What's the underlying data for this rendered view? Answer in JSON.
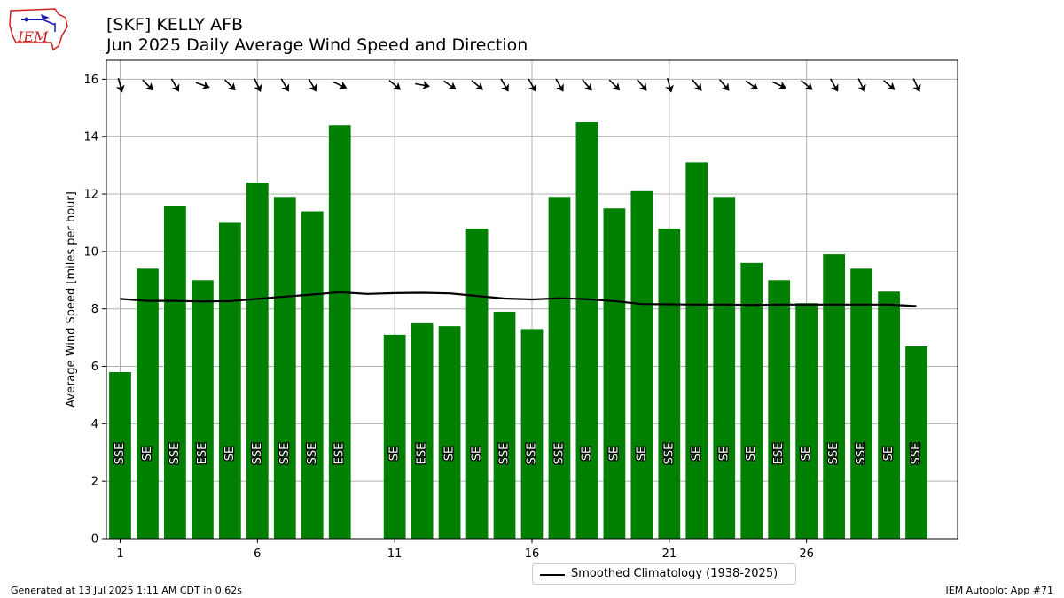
{
  "header": {
    "logo_text": "IEM",
    "title": "[SKF] KELLY AFB",
    "subtitle": "Jun 2025 Daily Average Wind Speed and Direction"
  },
  "footer": {
    "generated": "Generated at 13 Jul 2025 1:11 AM CDT in 0.62s",
    "app": "IEM Autoplot App #71"
  },
  "legend": {
    "climatology_label": "Smoothed Climatology (1938-2025)"
  },
  "colors": {
    "bar": "#008000",
    "climatology": "#000000",
    "grid": "#b0b0b0"
  },
  "chart_data": {
    "type": "bar",
    "title": "[SKF] KELLY AFB",
    "subtitle": "Jun 2025 Daily Average Wind Speed and Direction",
    "ylabel": "Average Wind Speed [miles per hour]",
    "xlabel": "",
    "xlim": [
      0.5,
      31.5
    ],
    "ylim": [
      0,
      16.66
    ],
    "yticks": [
      0,
      2,
      4,
      6,
      8,
      10,
      12,
      14,
      16
    ],
    "xticks": [
      1,
      6,
      11,
      16,
      21,
      26
    ],
    "grid": true,
    "legend_position": "bottom-center",
    "days": [
      1,
      2,
      3,
      4,
      5,
      6,
      7,
      8,
      9,
      10,
      11,
      12,
      13,
      14,
      15,
      16,
      17,
      18,
      19,
      20,
      21,
      22,
      23,
      24,
      25,
      26,
      27,
      28,
      29,
      30
    ],
    "speed": [
      5.8,
      9.4,
      11.6,
      9.0,
      11.0,
      12.4,
      11.9,
      11.4,
      14.4,
      null,
      7.1,
      7.5,
      7.4,
      10.8,
      7.9,
      7.3,
      11.9,
      14.5,
      11.5,
      12.1,
      10.8,
      13.1,
      11.9,
      9.6,
      9.0,
      8.2,
      9.9,
      9.4,
      8.6,
      6.7
    ],
    "direction": [
      "SSE",
      "SE",
      "SSE",
      "ESE",
      "SE",
      "SSE",
      "SSE",
      "SSE",
      "ESE",
      null,
      "SE",
      "ESE",
      "SE",
      "SE",
      "SSE",
      "SSE",
      "SSE",
      "SE",
      "SE",
      "SE",
      "SSE",
      "SE",
      "SE",
      "SE",
      "ESE",
      "SE",
      "SSE",
      "SSE",
      "SE",
      "SSE"
    ],
    "direction_deg": [
      165,
      135,
      150,
      110,
      135,
      155,
      150,
      150,
      115,
      null,
      130,
      100,
      125,
      130,
      150,
      150,
      150,
      140,
      135,
      140,
      165,
      140,
      140,
      125,
      115,
      130,
      150,
      155,
      130,
      155
    ],
    "climatology": [
      8.35,
      8.28,
      8.28,
      8.26,
      8.27,
      8.35,
      8.43,
      8.5,
      8.58,
      8.52,
      8.55,
      8.56,
      8.54,
      8.45,
      8.36,
      8.33,
      8.37,
      8.34,
      8.27,
      8.17,
      8.16,
      8.15,
      8.15,
      8.14,
      8.15,
      8.15,
      8.15,
      8.15,
      8.15,
      8.1
    ]
  }
}
